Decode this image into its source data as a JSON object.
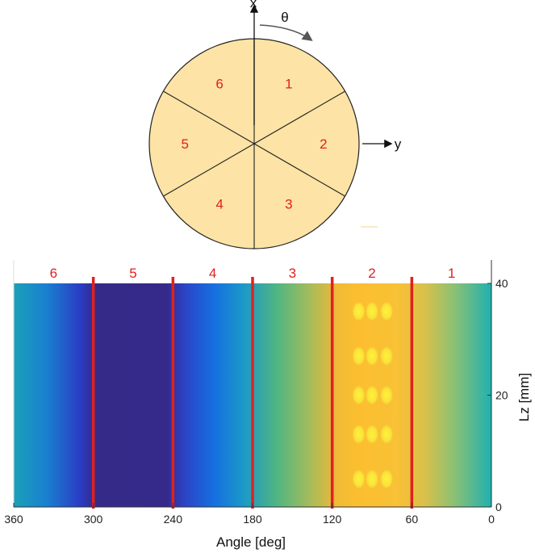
{
  "top_diagram": {
    "x_axis_label": "x",
    "y_axis_label": "y",
    "theta_label": "θ",
    "sectors": [
      "1",
      "2",
      "3",
      "4",
      "5",
      "6"
    ],
    "fill_color": "#fde3a5",
    "line_color": "#222222",
    "label_color": "#e02020"
  },
  "heatmap": {
    "x_label": "Angle [deg]",
    "y_label": "Lz [mm]",
    "x_ticks": [
      "360",
      "300",
      "240",
      "180",
      "120",
      "60",
      "0"
    ],
    "x_tick_values": [
      360,
      300,
      240,
      180,
      120,
      60,
      0
    ],
    "y_ticks": [
      "0",
      "20",
      "40"
    ],
    "y_tick_values": [
      0,
      20,
      40
    ],
    "x_range": [
      360,
      0
    ],
    "y_range": [
      0,
      40
    ],
    "boundary_angles": [
      300,
      240,
      180,
      120,
      60
    ],
    "boundary_color": "#e02020",
    "sector_labels": [
      {
        "text": "6",
        "angle": 330
      },
      {
        "text": "5",
        "angle": 270
      },
      {
        "text": "4",
        "angle": 210
      },
      {
        "text": "3",
        "angle": 150
      },
      {
        "text": "2",
        "angle": 90
      },
      {
        "text": "1",
        "angle": 30
      }
    ],
    "hotspot_angles": [
      100,
      90,
      79
    ],
    "hotspot_lz": [
      5,
      13,
      20,
      27,
      35
    ],
    "colormap": "parula"
  }
}
